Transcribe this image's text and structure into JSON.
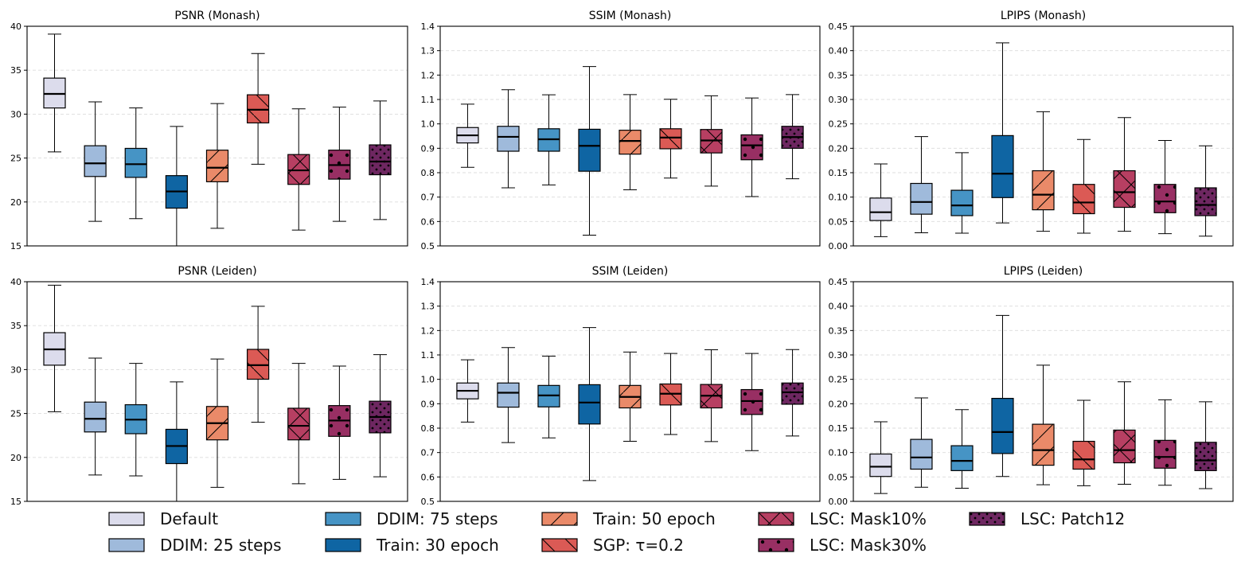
{
  "colors": {
    "default": "#dcdcec",
    "ddim25": "#9fbadb",
    "ddim75": "#4694c5",
    "train30": "#0f65a3",
    "train50": "#ea8a69",
    "sgp": "#db5a55",
    "mask10": "#b73f62",
    "mask30": "#982f63",
    "patch12": "#6e2761"
  },
  "legend": [
    {
      "key": "default",
      "label": "Default",
      "hatch": "none"
    },
    {
      "key": "ddim25",
      "label": "DDIM: 25 steps",
      "hatch": "none"
    },
    {
      "key": "ddim75",
      "label": "DDIM: 75 steps",
      "hatch": "none"
    },
    {
      "key": "train30",
      "label": "Train: 30 epoch",
      "hatch": "none"
    },
    {
      "key": "train50",
      "label": "Train: 50 epoch",
      "hatch": "slash"
    },
    {
      "key": "sgp",
      "label": "SGP: τ=0.2",
      "hatch": "backslash"
    },
    {
      "key": "mask10",
      "label": "LSC: Mask10%",
      "hatch": "cross"
    },
    {
      "key": "mask30",
      "label": "LSC: Mask30%",
      "hatch": "dots"
    },
    {
      "key": "patch12",
      "label": "LSC: Patch12",
      "hatch": "densedots"
    }
  ],
  "chart_data": [
    {
      "type": "boxplot",
      "title": "PSNR (Monash)",
      "ylim": [
        15,
        40
      ],
      "yticks": [
        "15",
        "20",
        "25",
        "30",
        "35",
        "40"
      ],
      "ytick_values": [
        15,
        20,
        25,
        30,
        35,
        40
      ],
      "series": [
        {
          "name": "Default",
          "whislo": 25.7,
          "q1": 30.7,
          "med": 32.3,
          "q3": 34.1,
          "whishi": 39.1
        },
        {
          "name": "DDIM: 25 steps",
          "whislo": 17.8,
          "q1": 22.9,
          "med": 24.4,
          "q3": 26.4,
          "whishi": 31.4
        },
        {
          "name": "DDIM: 75 steps",
          "whislo": 18.1,
          "q1": 22.8,
          "med": 24.3,
          "q3": 26.1,
          "whishi": 30.7
        },
        {
          "name": "Train: 30 epoch",
          "whislo": 15.0,
          "q1": 19.3,
          "med": 21.2,
          "q3": 23.0,
          "whishi": 28.6
        },
        {
          "name": "Train: 50 epoch",
          "whislo": 17.0,
          "q1": 22.3,
          "med": 23.9,
          "q3": 25.9,
          "whishi": 31.2
        },
        {
          "name": "SGP: τ=0.2",
          "whislo": 24.3,
          "q1": 29.0,
          "med": 30.5,
          "q3": 32.2,
          "whishi": 36.9
        },
        {
          "name": "LSC: Mask10%",
          "whislo": 16.8,
          "q1": 22.0,
          "med": 23.6,
          "q3": 25.4,
          "whishi": 30.6
        },
        {
          "name": "LSC: Mask30%",
          "whislo": 17.8,
          "q1": 22.6,
          "med": 24.2,
          "q3": 25.9,
          "whishi": 30.8
        },
        {
          "name": "LSC: Patch12",
          "whislo": 18.0,
          "q1": 23.1,
          "med": 24.6,
          "q3": 26.5,
          "whishi": 31.5
        }
      ]
    },
    {
      "type": "boxplot",
      "title": "SSIM (Monash)",
      "ylim": [
        0.5,
        1.4
      ],
      "yticks": [
        "0.5",
        "0.6",
        "0.7",
        "0.8",
        "0.9",
        "1.0",
        "1.1",
        "1.2",
        "1.3",
        "1.4"
      ],
      "ytick_values": [
        0.5,
        0.6,
        0.7,
        0.8,
        0.9,
        1.0,
        1.1,
        1.2,
        1.3,
        1.4
      ],
      "series": [
        {
          "name": "Default",
          "whislo": 0.822,
          "q1": 0.922,
          "med": 0.953,
          "q3": 0.985,
          "whishi": 1.081
        },
        {
          "name": "DDIM: 25 steps",
          "whislo": 0.738,
          "q1": 0.888,
          "med": 0.947,
          "q3": 0.99,
          "whishi": 1.14
        },
        {
          "name": "DDIM: 75 steps",
          "whislo": 0.75,
          "q1": 0.888,
          "med": 0.937,
          "q3": 0.98,
          "whishi": 1.119
        },
        {
          "name": "Train: 30 epoch",
          "whislo": 0.544,
          "q1": 0.806,
          "med": 0.91,
          "q3": 0.978,
          "whishi": 1.235
        },
        {
          "name": "Train: 50 epoch",
          "whislo": 0.73,
          "q1": 0.876,
          "med": 0.93,
          "q3": 0.974,
          "whishi": 1.12
        },
        {
          "name": "SGP: τ=0.2",
          "whislo": 0.778,
          "q1": 0.898,
          "med": 0.944,
          "q3": 0.98,
          "whishi": 1.101
        },
        {
          "name": "LSC: Mask10%",
          "whislo": 0.745,
          "q1": 0.881,
          "med": 0.932,
          "q3": 0.977,
          "whishi": 1.115
        },
        {
          "name": "LSC: Mask30%",
          "whislo": 0.702,
          "q1": 0.853,
          "med": 0.912,
          "q3": 0.955,
          "whishi": 1.106
        },
        {
          "name": "LSC: Patch12",
          "whislo": 0.775,
          "q1": 0.9,
          "med": 0.946,
          "q3": 0.99,
          "whishi": 1.12
        }
      ]
    },
    {
      "type": "boxplot",
      "title": "LPIPS (Monash)",
      "ylim": [
        0.0,
        0.45
      ],
      "yticks": [
        "0.00",
        "0.05",
        "0.10",
        "0.15",
        "0.20",
        "0.25",
        "0.30",
        "0.35",
        "0.40",
        "0.45"
      ],
      "ytick_values": [
        0.0,
        0.05,
        0.1,
        0.15,
        0.2,
        0.25,
        0.3,
        0.35,
        0.4,
        0.45
      ],
      "series": [
        {
          "name": "Default",
          "whislo": 0.019,
          "q1": 0.052,
          "med": 0.069,
          "q3": 0.098,
          "whishi": 0.168
        },
        {
          "name": "DDIM: 25 steps",
          "whislo": 0.027,
          "q1": 0.065,
          "med": 0.09,
          "q3": 0.128,
          "whishi": 0.224
        },
        {
          "name": "DDIM: 75 steps",
          "whislo": 0.026,
          "q1": 0.062,
          "med": 0.083,
          "q3": 0.114,
          "whishi": 0.191
        },
        {
          "name": "Train: 30 epoch",
          "whislo": 0.047,
          "q1": 0.099,
          "med": 0.148,
          "q3": 0.226,
          "whishi": 0.416
        },
        {
          "name": "Train: 50 epoch",
          "whislo": 0.03,
          "q1": 0.074,
          "med": 0.105,
          "q3": 0.154,
          "whishi": 0.275
        },
        {
          "name": "SGP: τ=0.2",
          "whislo": 0.026,
          "q1": 0.066,
          "med": 0.089,
          "q3": 0.126,
          "whishi": 0.218
        },
        {
          "name": "LSC: Mask10%",
          "whislo": 0.03,
          "q1": 0.079,
          "med": 0.11,
          "q3": 0.154,
          "whishi": 0.263
        },
        {
          "name": "LSC: Mask30%",
          "whislo": 0.025,
          "q1": 0.068,
          "med": 0.091,
          "q3": 0.126,
          "whishi": 0.216
        },
        {
          "name": "LSC: Patch12",
          "whislo": 0.02,
          "q1": 0.062,
          "med": 0.084,
          "q3": 0.119,
          "whishi": 0.205
        }
      ]
    },
    {
      "type": "boxplot",
      "title": "PSNR (Leiden)",
      "ylim": [
        15,
        40
      ],
      "yticks": [
        "15",
        "20",
        "25",
        "30",
        "35",
        "40"
      ],
      "ytick_values": [
        15,
        20,
        25,
        30,
        35,
        40
      ],
      "series": [
        {
          "name": "Default",
          "whislo": 25.2,
          "q1": 30.5,
          "med": 32.3,
          "q3": 34.2,
          "whishi": 39.6
        },
        {
          "name": "DDIM: 25 steps",
          "whislo": 18.0,
          "q1": 22.9,
          "med": 24.4,
          "q3": 26.3,
          "whishi": 31.3
        },
        {
          "name": "DDIM: 75 steps",
          "whislo": 17.9,
          "q1": 22.7,
          "med": 24.3,
          "q3": 26.0,
          "whishi": 30.7
        },
        {
          "name": "Train: 30 epoch",
          "whislo": 15.0,
          "q1": 19.3,
          "med": 21.3,
          "q3": 23.2,
          "whishi": 28.6
        },
        {
          "name": "Train: 50 epoch",
          "whislo": 16.6,
          "q1": 22.0,
          "med": 23.9,
          "q3": 25.8,
          "whishi": 31.2
        },
        {
          "name": "SGP: τ=0.2",
          "whislo": 24.0,
          "q1": 28.9,
          "med": 30.5,
          "q3": 32.3,
          "whishi": 37.2
        },
        {
          "name": "LSC: Mask10%",
          "whislo": 17.0,
          "q1": 22.0,
          "med": 23.6,
          "q3": 25.6,
          "whishi": 30.7
        },
        {
          "name": "LSC: Mask30%",
          "whislo": 17.5,
          "q1": 22.4,
          "med": 24.2,
          "q3": 25.9,
          "whishi": 30.4
        },
        {
          "name": "LSC: Patch12",
          "whislo": 17.8,
          "q1": 22.8,
          "med": 24.6,
          "q3": 26.4,
          "whishi": 31.7
        }
      ]
    },
    {
      "type": "boxplot",
      "title": "SSIM (Leiden)",
      "ylim": [
        0.5,
        1.4
      ],
      "yticks": [
        "0.5",
        "0.6",
        "0.7",
        "0.8",
        "0.9",
        "1.0",
        "1.1",
        "1.2",
        "1.3",
        "1.4"
      ],
      "ytick_values": [
        0.5,
        0.6,
        0.7,
        0.8,
        0.9,
        1.0,
        1.1,
        1.2,
        1.3,
        1.4
      ],
      "series": [
        {
          "name": "Default",
          "whislo": 0.825,
          "q1": 0.92,
          "med": 0.953,
          "q3": 0.985,
          "whishi": 1.08
        },
        {
          "name": "DDIM: 25 steps",
          "whislo": 0.741,
          "q1": 0.886,
          "med": 0.945,
          "q3": 0.985,
          "whishi": 1.13
        },
        {
          "name": "DDIM: 75 steps",
          "whislo": 0.76,
          "q1": 0.887,
          "med": 0.934,
          "q3": 0.975,
          "whishi": 1.095
        },
        {
          "name": "Train: 30 epoch",
          "whislo": 0.585,
          "q1": 0.817,
          "med": 0.905,
          "q3": 0.978,
          "whishi": 1.212
        },
        {
          "name": "Train: 50 epoch",
          "whislo": 0.746,
          "q1": 0.883,
          "med": 0.928,
          "q3": 0.975,
          "whishi": 1.112
        },
        {
          "name": "SGP: τ=0.2",
          "whislo": 0.774,
          "q1": 0.895,
          "med": 0.941,
          "q3": 0.981,
          "whishi": 1.106
        },
        {
          "name": "LSC: Mask10%",
          "whislo": 0.745,
          "q1": 0.883,
          "med": 0.933,
          "q3": 0.979,
          "whishi": 1.121
        },
        {
          "name": "LSC: Mask30%",
          "whislo": 0.708,
          "q1": 0.856,
          "med": 0.911,
          "q3": 0.958,
          "whishi": 1.106
        },
        {
          "name": "LSC: Patch12",
          "whislo": 0.768,
          "q1": 0.898,
          "med": 0.947,
          "q3": 0.985,
          "whishi": 1.122
        }
      ]
    },
    {
      "type": "boxplot",
      "title": "LPIPS (Leiden)",
      "ylim": [
        0.0,
        0.45
      ],
      "yticks": [
        "0.00",
        "0.05",
        "0.10",
        "0.15",
        "0.20",
        "0.25",
        "0.30",
        "0.35",
        "0.40",
        "0.45"
      ],
      "ytick_values": [
        0.0,
        0.05,
        0.1,
        0.15,
        0.2,
        0.25,
        0.3,
        0.35,
        0.4,
        0.45
      ],
      "series": [
        {
          "name": "Default",
          "whislo": 0.016,
          "q1": 0.051,
          "med": 0.071,
          "q3": 0.097,
          "whishi": 0.163
        },
        {
          "name": "DDIM: 25 steps",
          "whislo": 0.029,
          "q1": 0.066,
          "med": 0.09,
          "q3": 0.127,
          "whishi": 0.212
        },
        {
          "name": "DDIM: 75 steps",
          "whislo": 0.027,
          "q1": 0.063,
          "med": 0.083,
          "q3": 0.114,
          "whishi": 0.188
        },
        {
          "name": "Train: 30 epoch",
          "whislo": 0.051,
          "q1": 0.098,
          "med": 0.142,
          "q3": 0.211,
          "whishi": 0.381
        },
        {
          "name": "Train: 50 epoch",
          "whislo": 0.034,
          "q1": 0.074,
          "med": 0.105,
          "q3": 0.158,
          "whishi": 0.279
        },
        {
          "name": "SGP: τ=0.2",
          "whislo": 0.032,
          "q1": 0.066,
          "med": 0.086,
          "q3": 0.123,
          "whishi": 0.207
        },
        {
          "name": "LSC: Mask10%",
          "whislo": 0.035,
          "q1": 0.079,
          "med": 0.105,
          "q3": 0.146,
          "whishi": 0.245
        },
        {
          "name": "LSC: Mask30%",
          "whislo": 0.033,
          "q1": 0.068,
          "med": 0.091,
          "q3": 0.125,
          "whishi": 0.208
        },
        {
          "name": "LSC: Patch12",
          "whislo": 0.026,
          "q1": 0.063,
          "med": 0.084,
          "q3": 0.121,
          "whishi": 0.204
        }
      ]
    }
  ]
}
